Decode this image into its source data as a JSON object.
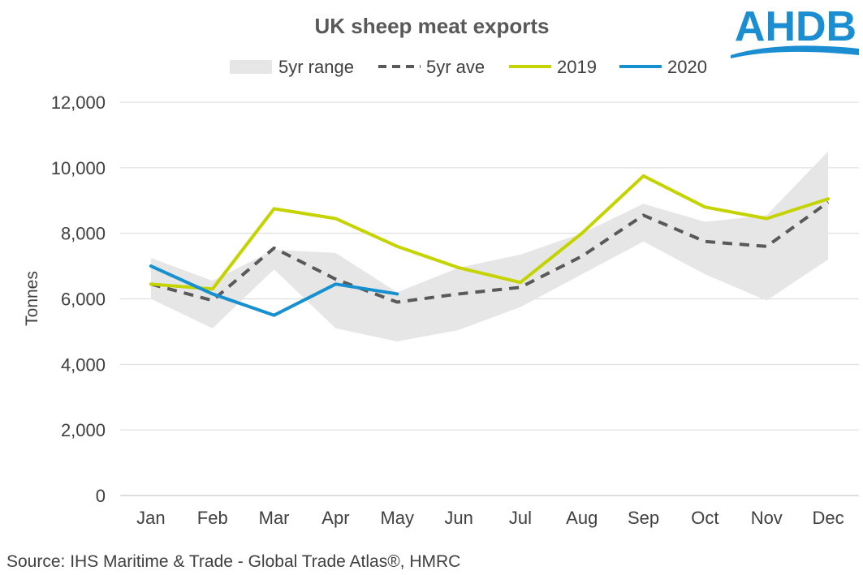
{
  "logo": {
    "text": "AHDB",
    "color": "#1a8ed1"
  },
  "source": "Source: IHS Maritime & Trade - Global Trade Atlas®, HMRC",
  "chart_data": {
    "type": "line",
    "title": "UK sheep meat exports",
    "xlabel": "",
    "ylabel": "Tonnes",
    "ylim": [
      0,
      12000
    ],
    "yticks": [
      0,
      2000,
      4000,
      6000,
      8000,
      10000,
      12000
    ],
    "ytick_labels": [
      "0",
      "2,000",
      "4,000",
      "6,000",
      "8,000",
      "10,000",
      "12,000"
    ],
    "grid": true,
    "legend_position": "top",
    "categories": [
      "Jan",
      "Feb",
      "Mar",
      "Apr",
      "May",
      "Jun",
      "Jul",
      "Aug",
      "Sep",
      "Oct",
      "Nov",
      "Dec"
    ],
    "range": {
      "name": "5yr range",
      "color": "#e6e6e6",
      "min": [
        6000,
        5100,
        6900,
        5100,
        4700,
        5050,
        5750,
        6750,
        7750,
        6750,
        5950,
        7200
      ],
      "max": [
        7250,
        6550,
        7500,
        7400,
        6200,
        6950,
        7350,
        8000,
        8900,
        8350,
        8550,
        10500
      ]
    },
    "series": [
      {
        "name": "5yr ave",
        "color": "#595959",
        "dash": true,
        "values": [
          6450,
          5950,
          7550,
          6600,
          5900,
          6150,
          6350,
          7300,
          8550,
          7750,
          7600,
          8950
        ]
      },
      {
        "name": "2019",
        "color": "#c5d300",
        "dash": false,
        "values": [
          6450,
          6300,
          8750,
          8450,
          7600,
          6950,
          6500,
          8000,
          9750,
          8800,
          8450,
          9050
        ]
      },
      {
        "name": "2020",
        "color": "#1790d0",
        "dash": false,
        "values": [
          7000,
          6150,
          5500,
          6450,
          6150,
          null,
          null,
          null,
          null,
          null,
          null,
          null
        ]
      }
    ]
  }
}
